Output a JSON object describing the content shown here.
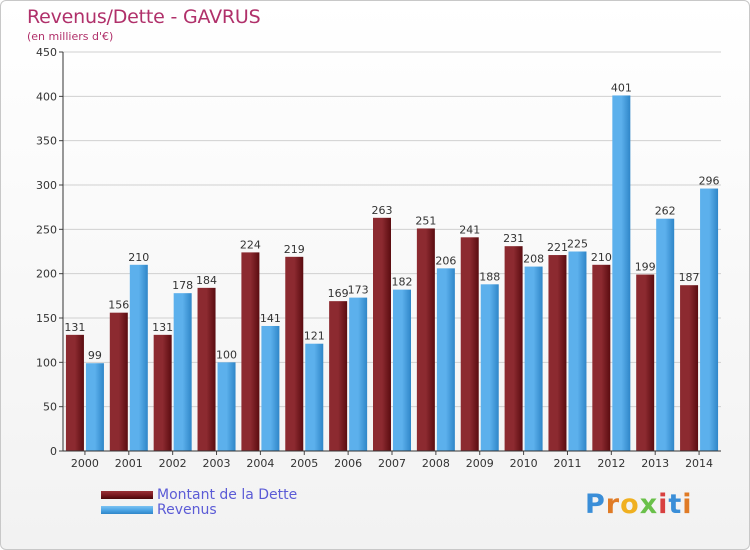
{
  "header": {
    "title": "Revenus/Dette - GAVRUS",
    "subtitle": "(en milliers d'€)"
  },
  "logo": {
    "text": "Proxiti",
    "letter_colors": [
      "#3a8ed8",
      "#e07b26",
      "#f0b020",
      "#6ac04a",
      "#d84040",
      "#3a8ed8",
      "#e07b26"
    ]
  },
  "colors": {
    "dette": "#7a1a20",
    "revenus": "#4ea6e6",
    "grid": "#d0d0d0"
  },
  "chart_data": {
    "type": "bar",
    "title": "Revenus/Dette - GAVRUS",
    "subtitle": "(en milliers d'€)",
    "categories": [
      "2000",
      "2001",
      "2002",
      "2003",
      "2004",
      "2005",
      "2006",
      "2007",
      "2008",
      "2009",
      "2010",
      "2011",
      "2012",
      "2013",
      "2014"
    ],
    "series": [
      {
        "name": "Montant de la Dette",
        "values": [
          131,
          156,
          131,
          184,
          224,
          219,
          169,
          263,
          251,
          241,
          231,
          221,
          210,
          199,
          187
        ]
      },
      {
        "name": "Revenus",
        "values": [
          99,
          210,
          178,
          100,
          141,
          121,
          173,
          182,
          206,
          188,
          208,
          225,
          401,
          262,
          296
        ]
      }
    ],
    "ylim": [
      0,
      450
    ],
    "yticks": [
      0,
      50,
      100,
      150,
      200,
      250,
      300,
      350,
      400,
      450
    ],
    "grid": true,
    "legend": "bottom-left"
  }
}
